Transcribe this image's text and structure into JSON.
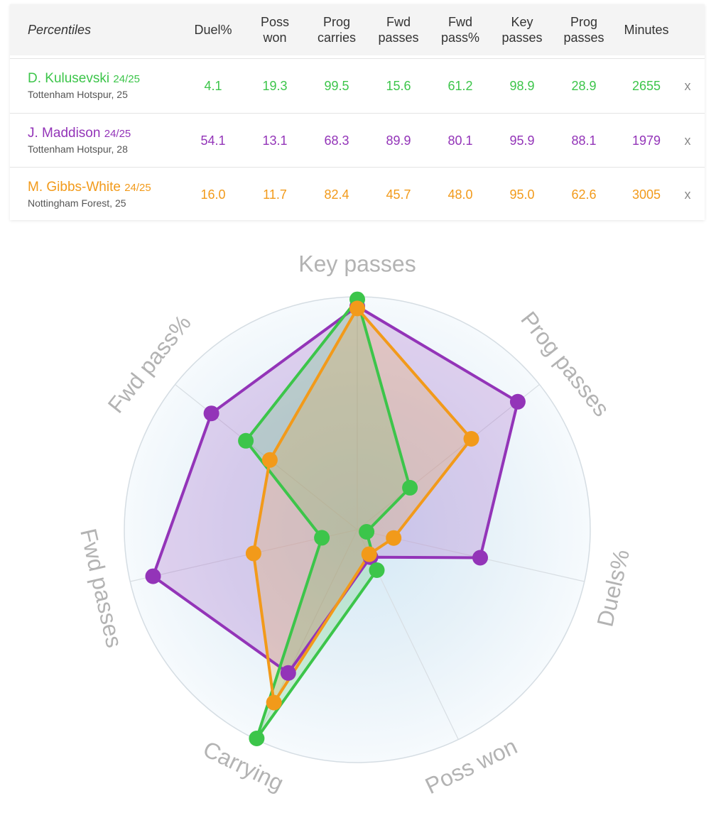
{
  "table": {
    "corner_label": "Percentiles",
    "columns": [
      "Duel%",
      "Poss\nwon",
      "Prog\ncarries",
      "Fwd\npasses",
      "Fwd\npass%",
      "Key\npasses",
      "Prog\npasses",
      "Minutes"
    ],
    "remove_label": "x",
    "rows": [
      {
        "name": "D. Kulusevski",
        "season": "24/25",
        "team": "Tottenham Hotspur, 25",
        "color": "#3cc54a",
        "values": [
          "4.1",
          "19.3",
          "99.5",
          "15.6",
          "61.2",
          "98.9",
          "28.9",
          "2655"
        ]
      },
      {
        "name": "J. Maddison",
        "season": "24/25",
        "team": "Tottenham Hotspur, 28",
        "color": "#9334b8",
        "values": [
          "54.1",
          "13.1",
          "68.3",
          "89.9",
          "80.1",
          "95.9",
          "88.1",
          "1979"
        ]
      },
      {
        "name": "M. Gibbs-White",
        "season": "24/25",
        "team": "Nottingham Forest, 25",
        "color": "#f29a1a",
        "values": [
          "16.0",
          "11.7",
          "82.4",
          "45.7",
          "48.0",
          "95.0",
          "62.6",
          "3005"
        ]
      }
    ]
  },
  "chart_data": {
    "type": "radar",
    "axes": [
      "Key passes",
      "Prog passes",
      "Duels%",
      "Poss won",
      "Carrying",
      "Fwd passes",
      "Fwd pass%"
    ],
    "range": [
      0,
      100
    ],
    "series": [
      {
        "name": "D. Kulusevski",
        "color": "#3cc54a",
        "values": [
          98.9,
          28.9,
          4.1,
          19.3,
          99.5,
          15.6,
          61.2
        ]
      },
      {
        "name": "J. Maddison",
        "color": "#9334b8",
        "values": [
          95.9,
          88.1,
          54.1,
          13.1,
          68.3,
          89.9,
          80.1
        ]
      },
      {
        "name": "M. Gibbs-White",
        "color": "#f29a1a",
        "values": [
          95.0,
          62.6,
          16.0,
          11.7,
          82.4,
          45.7,
          48.0
        ]
      }
    ]
  }
}
